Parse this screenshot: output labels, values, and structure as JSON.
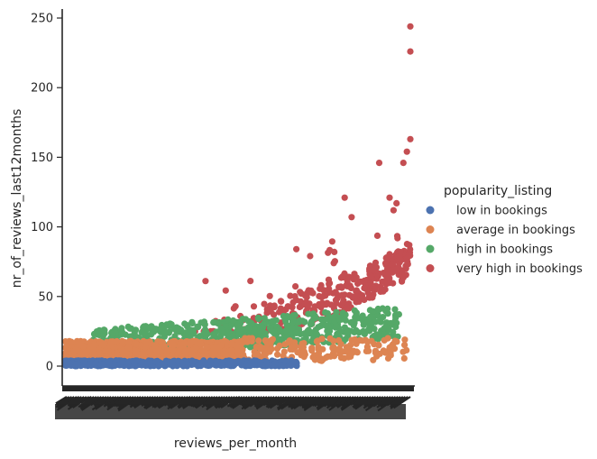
{
  "chart_data": {
    "type": "scatter",
    "title": "",
    "xlabel": "reviews_per_month",
    "ylabel": "nr_of_reviews_last12months",
    "x_axis_kind": "categorical (tick labels overplotted and unreadable)",
    "ylim": [
      -14,
      258
    ],
    "y_ticks": [
      0,
      50,
      100,
      150,
      200,
      250
    ],
    "grid": false,
    "legend": {
      "title": "popularity_listing",
      "placement": "right",
      "entries": [
        "low in bookings",
        "average in bookings",
        "high in bookings",
        "very high in bookings"
      ]
    },
    "series": [
      {
        "name": "low in bookings",
        "color": "#4c72b0",
        "y_range": [
          0,
          4
        ],
        "x_extent_fraction": [
          0.0,
          0.68
        ],
        "points_note": "dense band of points at y 0-4 across the left portion of the x axis"
      },
      {
        "name": "average in bookings",
        "color": "#dd8452",
        "y_range": [
          2,
          20
        ],
        "x_extent_fraction": [
          0.0,
          0.99
        ],
        "points_note": "dense band y 5-20 on left half, sparser points to the right"
      },
      {
        "name": "high in bookings",
        "color": "#55a868",
        "y_range": [
          10,
          45
        ],
        "x_extent_fraction": [
          0.08,
          0.97
        ],
        "points_note": "band y 15-40 from left-center to right"
      },
      {
        "name": "very high in bookings",
        "color": "#c44e52",
        "y_range": [
          25,
          244
        ],
        "x_extent_fraction": [
          0.36,
          1.0
        ],
        "points_note": "points rising with x; outliers at the far right",
        "outliers": [
          {
            "x_frac": 1.0,
            "y": 244
          },
          {
            "x_frac": 1.0,
            "y": 226
          },
          {
            "x_frac": 1.0,
            "y": 163
          },
          {
            "x_frac": 0.99,
            "y": 154
          },
          {
            "x_frac": 0.98,
            "y": 146
          },
          {
            "x_frac": 0.91,
            "y": 146
          },
          {
            "x_frac": 0.81,
            "y": 121
          },
          {
            "x_frac": 0.94,
            "y": 121
          },
          {
            "x_frac": 0.96,
            "y": 117
          },
          {
            "x_frac": 0.83,
            "y": 107
          },
          {
            "x_frac": 0.67,
            "y": 84
          },
          {
            "x_frac": 0.71,
            "y": 79
          },
          {
            "x_frac": 0.78,
            "y": 82
          }
        ]
      }
    ]
  }
}
